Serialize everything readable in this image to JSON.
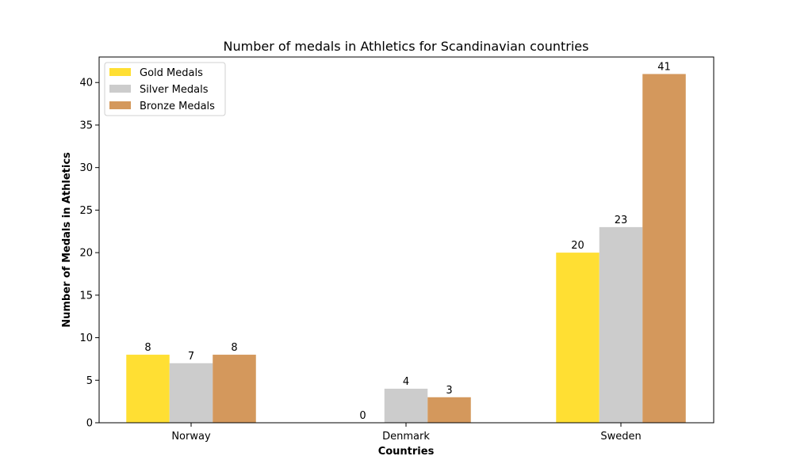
{
  "chart_data": {
    "type": "bar",
    "title": "Number of medals in Athletics for Scandinavian countries",
    "xlabel": "Countries",
    "ylabel": "Number of Medals in Athletics",
    "categories": [
      "Norway",
      "Denmark",
      "Sweden"
    ],
    "series": [
      {
        "name": "Gold Medals",
        "values": [
          8,
          0,
          20
        ],
        "color": "#ffdf33"
      },
      {
        "name": "Silver Medals",
        "values": [
          7,
          4,
          23
        ],
        "color": "#cccccc"
      },
      {
        "name": "Bronze Medals",
        "values": [
          8,
          3,
          41
        ],
        "color": "#d4985c"
      }
    ],
    "ylim": [
      0,
      43
    ],
    "yticks": [
      0,
      5,
      10,
      15,
      20,
      25,
      30,
      35,
      40
    ],
    "grid": false,
    "legend_position": "top-left"
  }
}
